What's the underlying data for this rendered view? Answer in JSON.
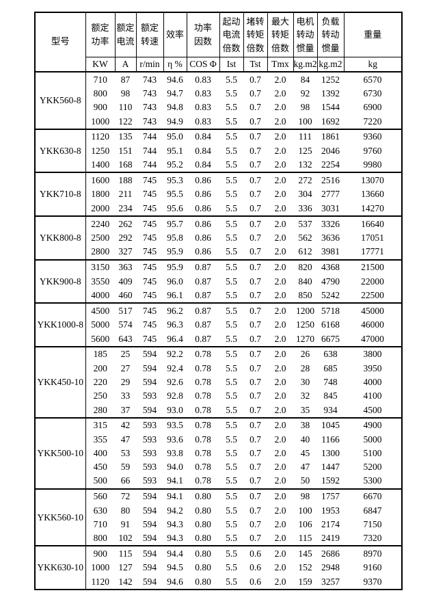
{
  "table": {
    "header": {
      "model_label": "型号",
      "columns": [
        {
          "name": "额定\n功率",
          "unit": "KW"
        },
        {
          "name": "额定\n电流",
          "unit": "A"
        },
        {
          "name": "额定\n转速",
          "unit": "r/min"
        },
        {
          "name": "效率",
          "unit": "η %"
        },
        {
          "name": "功率\n因数",
          "unit": "COS Φ"
        },
        {
          "name": "起动\n电流\n倍数",
          "unit": "Ist"
        },
        {
          "name": "堵转\n转矩\n倍数",
          "unit": "Tst"
        },
        {
          "name": "最大\n转矩\n倍数",
          "unit": "Tmx"
        },
        {
          "name": "电机\n转动\n惯量",
          "unit": "kg.m2"
        },
        {
          "name": "负载\n转动\n惯量",
          "unit": "kg.m2"
        },
        {
          "name": "重量",
          "unit": "kg"
        }
      ]
    },
    "groups": [
      {
        "model": "YKK560-8",
        "rows": [
          [
            "710",
            "87",
            "743",
            "94.6",
            "0.83",
            "5.5",
            "0.7",
            "2.0",
            "84",
            "1252",
            "6570"
          ],
          [
            "800",
            "98",
            "743",
            "94.7",
            "0.83",
            "5.5",
            "0.7",
            "2.0",
            "92",
            "1392",
            "6730"
          ],
          [
            "900",
            "110",
            "743",
            "94.8",
            "0.83",
            "5.5",
            "0.7",
            "2.0",
            "98",
            "1544",
            "6900"
          ],
          [
            "1000",
            "122",
            "743",
            "94.9",
            "0.83",
            "5.5",
            "0.7",
            "2.0",
            "100",
            "1692",
            "7220"
          ]
        ]
      },
      {
        "model": "YKK630-8",
        "rows": [
          [
            "1120",
            "135",
            "744",
            "95.0",
            "0.84",
            "5.5",
            "0.7",
            "2.0",
            "111",
            "1861",
            "9360"
          ],
          [
            "1250",
            "151",
            "744",
            "95.1",
            "0.84",
            "5.5",
            "0.7",
            "2.0",
            "125",
            "2046",
            "9760"
          ],
          [
            "1400",
            "168",
            "744",
            "95.2",
            "0.84",
            "5.5",
            "0.7",
            "2.0",
            "132",
            "2254",
            "9980"
          ]
        ]
      },
      {
        "model": "YKK710-8",
        "rows": [
          [
            "1600",
            "188",
            "745",
            "95.3",
            "0.86",
            "5.5",
            "0.7",
            "2.0",
            "272",
            "2516",
            "13070"
          ],
          [
            "1800",
            "211",
            "745",
            "95.5",
            "0.86",
            "5.5",
            "0.7",
            "2.0",
            "304",
            "2777",
            "13660"
          ],
          [
            "2000",
            "234",
            "745",
            "95.6",
            "0.86",
            "5.5",
            "0.7",
            "2.0",
            "336",
            "3031",
            "14270"
          ]
        ]
      },
      {
        "model": "YKK800-8",
        "rows": [
          [
            "2240",
            "262",
            "745",
            "95.7",
            "0.86",
            "5.5",
            "0.7",
            "2.0",
            "537",
            "3326",
            "16640"
          ],
          [
            "2500",
            "292",
            "745",
            "95.8",
            "0.86",
            "5.5",
            "0.7",
            "2.0",
            "562",
            "3636",
            "17051"
          ],
          [
            "2800",
            "327",
            "745",
            "95.9",
            "0.86",
            "5.5",
            "0.7",
            "2.0",
            "612",
            "3981",
            "17771"
          ]
        ]
      },
      {
        "model": "YKK900-8",
        "rows": [
          [
            "3150",
            "363",
            "745",
            "95.9",
            "0.87",
            "5.5",
            "0.7",
            "2.0",
            "820",
            "4368",
            "21500"
          ],
          [
            "3550",
            "409",
            "745",
            "96.0",
            "0.87",
            "5.5",
            "0.7",
            "2.0",
            "840",
            "4790",
            "22000"
          ],
          [
            "4000",
            "460",
            "745",
            "96.1",
            "0.87",
            "5.5",
            "0.7",
            "2.0",
            "850",
            "5242",
            "22500"
          ]
        ]
      },
      {
        "model": "YKK1000-8",
        "rows": [
          [
            "4500",
            "517",
            "745",
            "96.2",
            "0.87",
            "5.5",
            "0.7",
            "2.0",
            "1200",
            "5718",
            "45000"
          ],
          [
            "5000",
            "574",
            "745",
            "96.3",
            "0.87",
            "5.5",
            "0.7",
            "2.0",
            "1250",
            "6168",
            "46000"
          ],
          [
            "5600",
            "643",
            "745",
            "96.4",
            "0.87",
            "5.5",
            "0.7",
            "2.0",
            "1270",
            "6675",
            "47000"
          ]
        ]
      },
      {
        "model": "YKK450-10",
        "rows": [
          [
            "185",
            "25",
            "594",
            "92.2",
            "0.78",
            "5.5",
            "0.7",
            "2.0",
            "26",
            "638",
            "3800"
          ],
          [
            "200",
            "27",
            "594",
            "92.4",
            "0.78",
            "5.5",
            "0.7",
            "2.0",
            "28",
            "685",
            "3950"
          ],
          [
            "220",
            "29",
            "594",
            "92.6",
            "0.78",
            "5.5",
            "0.7",
            "2.0",
            "30",
            "748",
            "4000"
          ],
          [
            "250",
            "33",
            "593",
            "92.8",
            "0.78",
            "5.5",
            "0.7",
            "2.0",
            "32",
            "845",
            "4100"
          ],
          [
            "280",
            "37",
            "594",
            "93.0",
            "0.78",
            "5.5",
            "0.7",
            "2.0",
            "35",
            "934",
            "4500"
          ]
        ]
      },
      {
        "model": "YKK500-10",
        "rows": [
          [
            "315",
            "42",
            "593",
            "93.5",
            "0.78",
            "5.5",
            "0.7",
            "2.0",
            "38",
            "1045",
            "4900"
          ],
          [
            "355",
            "47",
            "593",
            "93.6",
            "0.78",
            "5.5",
            "0.7",
            "2.0",
            "40",
            "1166",
            "5000"
          ],
          [
            "400",
            "53",
            "593",
            "93.8",
            "0.78",
            "5.5",
            "0.7",
            "2.0",
            "45",
            "1300",
            "5100"
          ],
          [
            "450",
            "59",
            "593",
            "94.0",
            "0.78",
            "5.5",
            "0.7",
            "2.0",
            "47",
            "1447",
            "5200"
          ],
          [
            "500",
            "66",
            "593",
            "94.1",
            "0.78",
            "5.5",
            "0.7",
            "2.0",
            "50",
            "1592",
            "5300"
          ]
        ]
      },
      {
        "model": "YKK560-10",
        "rows": [
          [
            "560",
            "72",
            "594",
            "94.1",
            "0.80",
            "5.5",
            "0.7",
            "2.0",
            "98",
            "1757",
            "6670"
          ],
          [
            "630",
            "80",
            "594",
            "94.2",
            "0.80",
            "5.5",
            "0.7",
            "2.0",
            "100",
            "1953",
            "6847"
          ],
          [
            "710",
            "91",
            "594",
            "94.3",
            "0.80",
            "5.5",
            "0.7",
            "2.0",
            "106",
            "2174",
            "7150"
          ],
          [
            "800",
            "102",
            "594",
            "94.3",
            "0.80",
            "5.5",
            "0.7",
            "2.0",
            "115",
            "2419",
            "7320"
          ]
        ]
      },
      {
        "model": "YKK630-10",
        "rows": [
          [
            "900",
            "115",
            "594",
            "94.4",
            "0.80",
            "5.5",
            "0.6",
            "2.0",
            "145",
            "2686",
            "8970"
          ],
          [
            "1000",
            "127",
            "594",
            "94.5",
            "0.80",
            "5.5",
            "0.6",
            "2.0",
            "152",
            "2948",
            "9160"
          ],
          [
            "1120",
            "142",
            "594",
            "94.6",
            "0.80",
            "5.5",
            "0.6",
            "2.0",
            "159",
            "3257",
            "9370"
          ]
        ]
      }
    ]
  }
}
